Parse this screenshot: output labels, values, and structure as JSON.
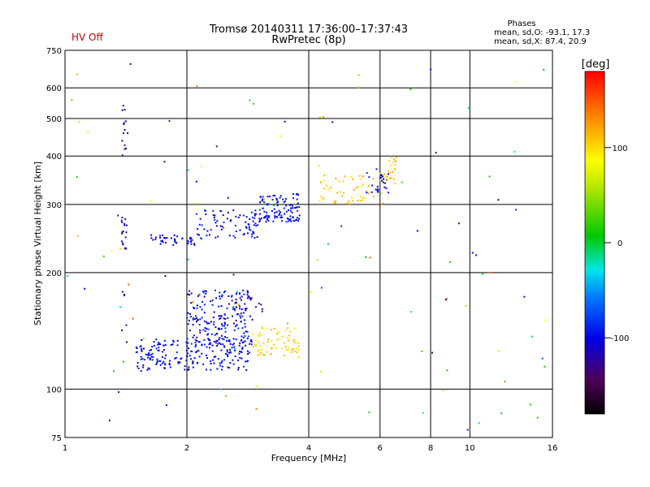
{
  "header": {
    "status": "HV Off",
    "title_line1": "Tromsø 20140311 17:36:00–17:37:43",
    "title_line2": "RwPretec (8p)",
    "stats_title": "Phases",
    "stats_line1": "mean, sd,O: -93.1, 17.3",
    "stats_line2": "mean, sd,X:  87.4, 20.9"
  },
  "colorbar": {
    "label": "[deg]",
    "min": -180,
    "max": 180,
    "ticks": [
      "100",
      "0",
      "-100"
    ],
    "tick_values": [
      100,
      0,
      -100
    ]
  },
  "chart_data": {
    "type": "scatter",
    "xlabel": "Frequency [MHz]",
    "ylabel": "Stationary phase Virtual Height [km]",
    "x_scale": "log",
    "y_scale": "log",
    "xlim": [
      1,
      16
    ],
    "ylim": [
      75,
      750
    ],
    "grid": true,
    "x_ticks": [
      "1",
      "2",
      "4",
      "6",
      "8",
      "10",
      "16"
    ],
    "x_tick_values": [
      1,
      2,
      4,
      6,
      8,
      10,
      16
    ],
    "y_ticks": [
      "750",
      "600",
      "500",
      "400",
      "300",
      "200",
      "100",
      "75"
    ],
    "y_tick_values": [
      750,
      600,
      500,
      400,
      300,
      200,
      100,
      75
    ],
    "clusters": [
      {
        "x": [
          1.5,
          2.9
        ],
        "y": [
          112,
          135
        ],
        "phase": [
          -110,
          -85
        ],
        "n": 220
      },
      {
        "x": [
          2.0,
          2.9
        ],
        "y": [
          130,
          180
        ],
        "phase": [
          -120,
          -75
        ],
        "n": 190
      },
      {
        "x": [
          2.4,
          3.2
        ],
        "y": [
          150,
          175
        ],
        "phase": [
          -135,
          -110
        ],
        "n": 20
      },
      {
        "x": [
          2.9,
          3.8
        ],
        "y": [
          120,
          145
        ],
        "phase": [
          90,
          115
        ],
        "n": 70
      },
      {
        "x": [
          1.6,
          2.1
        ],
        "y": [
          235,
          250
        ],
        "phase": [
          -115,
          -95
        ],
        "n": 40
      },
      {
        "x": [
          2.1,
          3.0
        ],
        "y": [
          245,
          290
        ],
        "phase": [
          -110,
          -80
        ],
        "n": 80
      },
      {
        "x": [
          3.0,
          3.8
        ],
        "y": [
          270,
          320
        ],
        "phase": [
          -110,
          -85
        ],
        "n": 110
      },
      {
        "x": [
          4.2,
          6.2
        ],
        "y": [
          300,
          360
        ],
        "phase": [
          90,
          125
        ],
        "n": 60
      },
      {
        "x": [
          5.5,
          6.3
        ],
        "y": [
          320,
          370
        ],
        "phase": [
          -110,
          -85
        ],
        "n": 25
      },
      {
        "x": [
          6.2,
          6.6
        ],
        "y": [
          330,
          400
        ],
        "phase": [
          95,
          120
        ],
        "n": 20
      },
      {
        "x": [
          1.38,
          1.43
        ],
        "y": [
          230,
          280
        ],
        "phase": [
          -130,
          -115
        ],
        "n": 18
      },
      {
        "x": [
          1.38,
          1.43
        ],
        "y": [
          400,
          550
        ],
        "phase": [
          -130,
          -115
        ],
        "n": 14
      },
      {
        "x": [
          1.38,
          1.43
        ],
        "y": [
          130,
          190
        ],
        "phase": [
          -130,
          -115
        ],
        "n": 6
      },
      {
        "x": [
          1.0,
          16.0
        ],
        "y": [
          75,
          700
        ],
        "phase": [
          -150,
          150
        ],
        "n": 110
      }
    ]
  }
}
